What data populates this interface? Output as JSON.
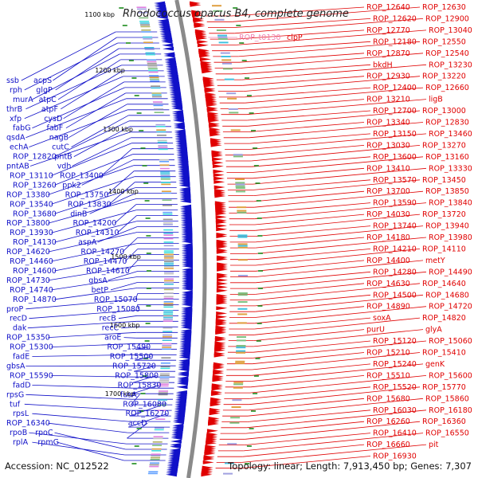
{
  "title": "Rhodococcus opacus B4, complete genome",
  "footer": {
    "accession": "Accession: NC_012522",
    "summary": "Topology: linear; Length: 7,913,450 bp; Genes: 7,307"
  },
  "colors": {
    "forward": "#e00000",
    "reverse": "#1010c8",
    "highlight": "#f080b0",
    "backbone": "#8a8a8a",
    "tick": "#1a8a1a"
  },
  "scale_ticks": [
    "1100 kbp",
    "1200 kbp",
    "1300 kbp",
    "1400 kbp",
    "1500 kbp",
    "1600 kbp",
    "1700 kbp"
  ],
  "labels_left": [
    "ssb",
    "acpS",
    "rph",
    "glgP",
    "murA",
    "atpC",
    "thrB",
    "atpF",
    "xfp",
    "cysD",
    "fabG",
    "fabF",
    "qsdA",
    "nagB",
    "echA",
    "cutC",
    "ROP_12820",
    "pntB",
    "pntAB",
    "vdh",
    "ROP_13110",
    "ROP_13400",
    "ROP_13260",
    "ppk2",
    "ROP_13380",
    "ROP_13750",
    "ROP_13540",
    "ROP_13830",
    "ROP_13680",
    "dinB",
    "ROP_13800",
    "ROP_14200",
    "ROP_13930",
    "ROP_14310",
    "ROP_14130",
    "aspA",
    "ROP_14620",
    "ROP_14270",
    "ROP_14460",
    "ROP_14470",
    "ROP_14600",
    "ROP_14610",
    "ROP_14730",
    "gbsA",
    "ROP_14740",
    "betP",
    "ROP_14870",
    "ROP_15070",
    "proP",
    "ROP_15080",
    "recD",
    "recB",
    "dak",
    "recC",
    "ROP_15350",
    "aroE",
    "ROP_15300",
    "ROP_15490",
    "fadE",
    "ROP_15500",
    "gbsA",
    "ROP_15720",
    "ROP_15590",
    "ROP_15800",
    "fadD",
    "ROP_15830",
    "rpsG",
    "fusA",
    "tuf",
    "ROP_16080",
    "rpsL",
    "ROP_16270",
    "ROP_16340",
    "accD",
    "rpoB",
    "rpoC",
    "rplA",
    "rpmG"
  ],
  "labels_right": [
    "ROP_12640",
    "ROP_12630",
    "ROP_12620",
    "ROP_12900",
    "ROP_12770",
    "ROP_13040",
    "ROP_12180",
    "ROP_12550",
    "ROP_12870",
    "ROP_12540",
    "bkdH",
    "ROP_13230",
    "ROP_12930",
    "ROP_13220",
    "ROP_12400",
    "ROP_12660",
    "ROP_13210",
    "ligB",
    "ROP_12700",
    "ROP_13000",
    "ROP_13340",
    "ROP_12830",
    "ROP_13150",
    "ROP_13460",
    "ROP_13030",
    "ROP_13270",
    "ROP_13600",
    "ROP_13160",
    "ROP_13410",
    "ROP_13330",
    "ROP_13570",
    "ROP_13450",
    "ROP_13700",
    "ROP_13850",
    "ROP_13590",
    "ROP_13840",
    "ROP_14030",
    "ROP_13720",
    "ROP_13740",
    "ROP_13940",
    "ROP_14180",
    "ROP_13980",
    "ROP_14210",
    "ROP_14110",
    "ROP_14400",
    "metY",
    "ROP_14280",
    "ROP_14490",
    "ROP_14630",
    "ROP_14640",
    "ROP_14500",
    "ROP_14680",
    "ROP_14890",
    "ROP_14720",
    "soxA",
    "ROP_14820",
    "purU",
    "glyA",
    "ROP_15120",
    "ROP_15060",
    "ROP_15210",
    "ROP_15410",
    "ROP_15240",
    "genK",
    "ROP_15510",
    "ROP_15600",
    "ROP_15520",
    "ROP_15770",
    "ROP_15680",
    "ROP_15860",
    "ROP_16030",
    "ROP_16180",
    "ROP_16260",
    "ROP_16360",
    "ROP_16410",
    "ROP_16550",
    "ROP_16660",
    "pit",
    "ROP_16930"
  ],
  "label_highlight": "ROP_t0130",
  "label_clp": "clpP"
}
